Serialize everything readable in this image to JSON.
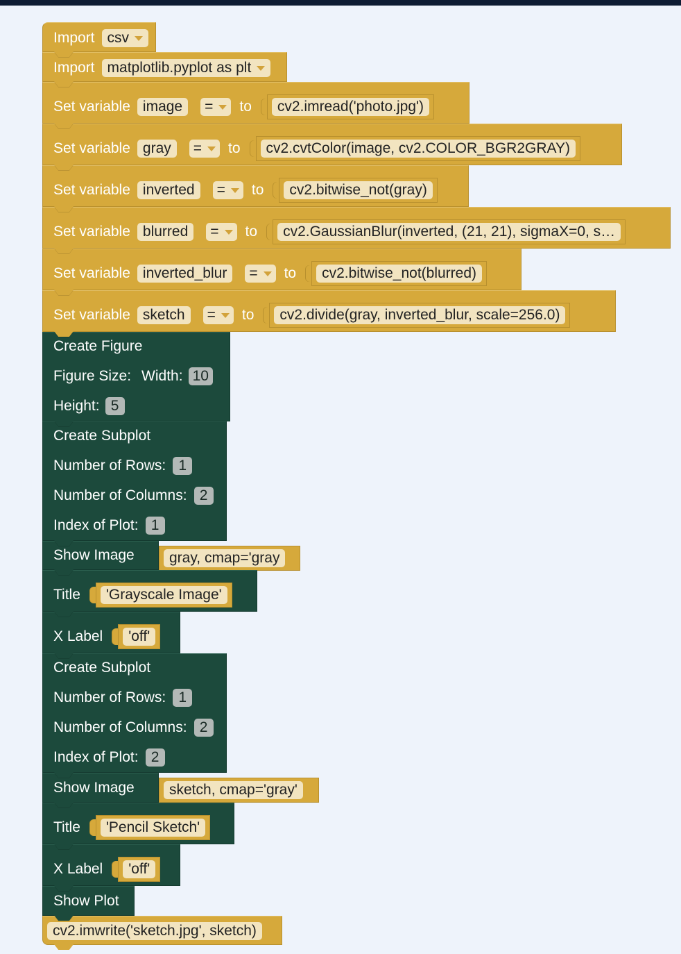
{
  "blocks": {
    "import_csv": {
      "keyword": "Import",
      "module": "csv"
    },
    "import_plt": {
      "keyword": "Import",
      "module": "matplotlib.pyplot as plt"
    },
    "set_label": "Set variable",
    "eq": "=",
    "to": "to",
    "vars": [
      {
        "name": "image",
        "expr": "cv2.imread('photo.jpg')"
      },
      {
        "name": "gray",
        "expr": "cv2.cvtColor(image, cv2.COLOR_BGR2GRAY)"
      },
      {
        "name": "inverted",
        "expr": "cv2.bitwise_not(gray)"
      },
      {
        "name": "blurred",
        "expr": "cv2.GaussianBlur(inverted, (21, 21), sigmaX=0, s…"
      },
      {
        "name": "inverted_blur",
        "expr": "cv2.bitwise_not(blurred)"
      },
      {
        "name": "sketch",
        "expr": "cv2.divide(gray, inverted_blur, scale=256.0)"
      }
    ],
    "figure": {
      "title": "Create Figure",
      "size_label": "Figure Size:",
      "width_label": "Width:",
      "width": "10",
      "height_label": "Height:",
      "height": "5"
    },
    "subplot1": {
      "title": "Create Subplot",
      "rows_label": "Number of Rows:",
      "rows": "1",
      "cols_label": "Number of Columns:",
      "cols": "2",
      "index_label": "Index of Plot:",
      "index": "1"
    },
    "show1": {
      "label": "Show Image",
      "arg": "gray, cmap='gray"
    },
    "title1": {
      "label": "Title",
      "arg": "'Grayscale Image'"
    },
    "xlabel1": {
      "label": "X Label",
      "arg": "'off'"
    },
    "subplot2": {
      "title": "Create Subplot",
      "rows_label": "Number of Rows:",
      "rows": "1",
      "cols_label": "Number of Columns:",
      "cols": "2",
      "index_label": "Index of Plot:",
      "index": "2"
    },
    "show2": {
      "label": "Show Image",
      "arg": "sketch, cmap='gray'"
    },
    "title2": {
      "label": "Title",
      "arg": "'Pencil Sketch'"
    },
    "xlabel2": {
      "label": "X Label",
      "arg": "'off'"
    },
    "showplot": {
      "label": "Show Plot"
    },
    "imwrite": {
      "code": "cv2.imwrite('sketch.jpg', sketch)"
    }
  }
}
